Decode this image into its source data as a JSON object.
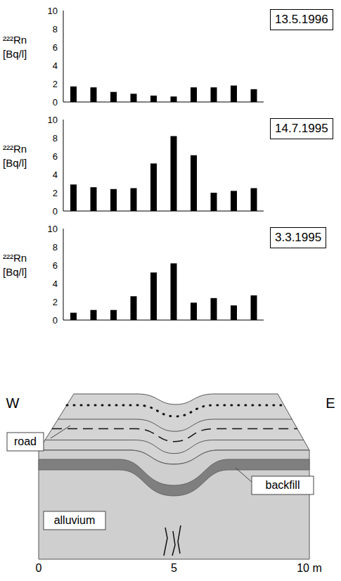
{
  "chart_data": [
    {
      "type": "bar",
      "title": "13.5.1996",
      "ylabel": "²²²Rn [Bq/l]",
      "categories": [
        null,
        null,
        null,
        null,
        null,
        null,
        null,
        null,
        null,
        null
      ],
      "values": [
        1.7,
        1.6,
        1.1,
        0.9,
        0.7,
        0.6,
        1.6,
        1.6,
        1.8,
        1.4
      ],
      "color": "#000000",
      "ylim": [
        0,
        10
      ],
      "yticks": [
        0,
        2,
        4,
        6,
        8,
        10
      ],
      "tick_labels": "y"
    },
    {
      "type": "bar",
      "title": "14.7.1995",
      "ylabel": "²²²Rn [Bq/l]",
      "categories": [
        null,
        null,
        null,
        null,
        null,
        null,
        null,
        null,
        null,
        null
      ],
      "values": [
        2.9,
        2.6,
        2.4,
        2.5,
        5.2,
        8.2,
        6.1,
        2.0,
        2.2,
        2.5
      ],
      "color": "#000000",
      "ylim": [
        0,
        10
      ],
      "yticks": [
        0,
        2,
        4,
        6,
        8,
        10
      ],
      "tick_labels": "y"
    },
    {
      "type": "bar",
      "title": "3.3.1995",
      "ylabel": "²²²Rn [Bq/l]",
      "categories": [
        null,
        null,
        null,
        null,
        null,
        null,
        null,
        null,
        null,
        null
      ],
      "values": [
        0.8,
        1.1,
        1.1,
        2.6,
        5.2,
        6.2,
        1.9,
        2.4,
        1.6,
        2.7
      ],
      "color": "#000000",
      "ylim": [
        0,
        10
      ],
      "yticks": [
        0,
        2,
        4,
        6,
        8,
        10
      ],
      "tick_labels": "y"
    }
  ],
  "diagram": {
    "left": "W",
    "right": "E",
    "road_label": "road",
    "backfill_label": "backfill",
    "alluvium_label": "alluvium",
    "xlim": [
      0,
      10
    ],
    "xticks": [
      0,
      5,
      {
        "value": 10,
        "label": "10 m"
      }
    ]
  }
}
